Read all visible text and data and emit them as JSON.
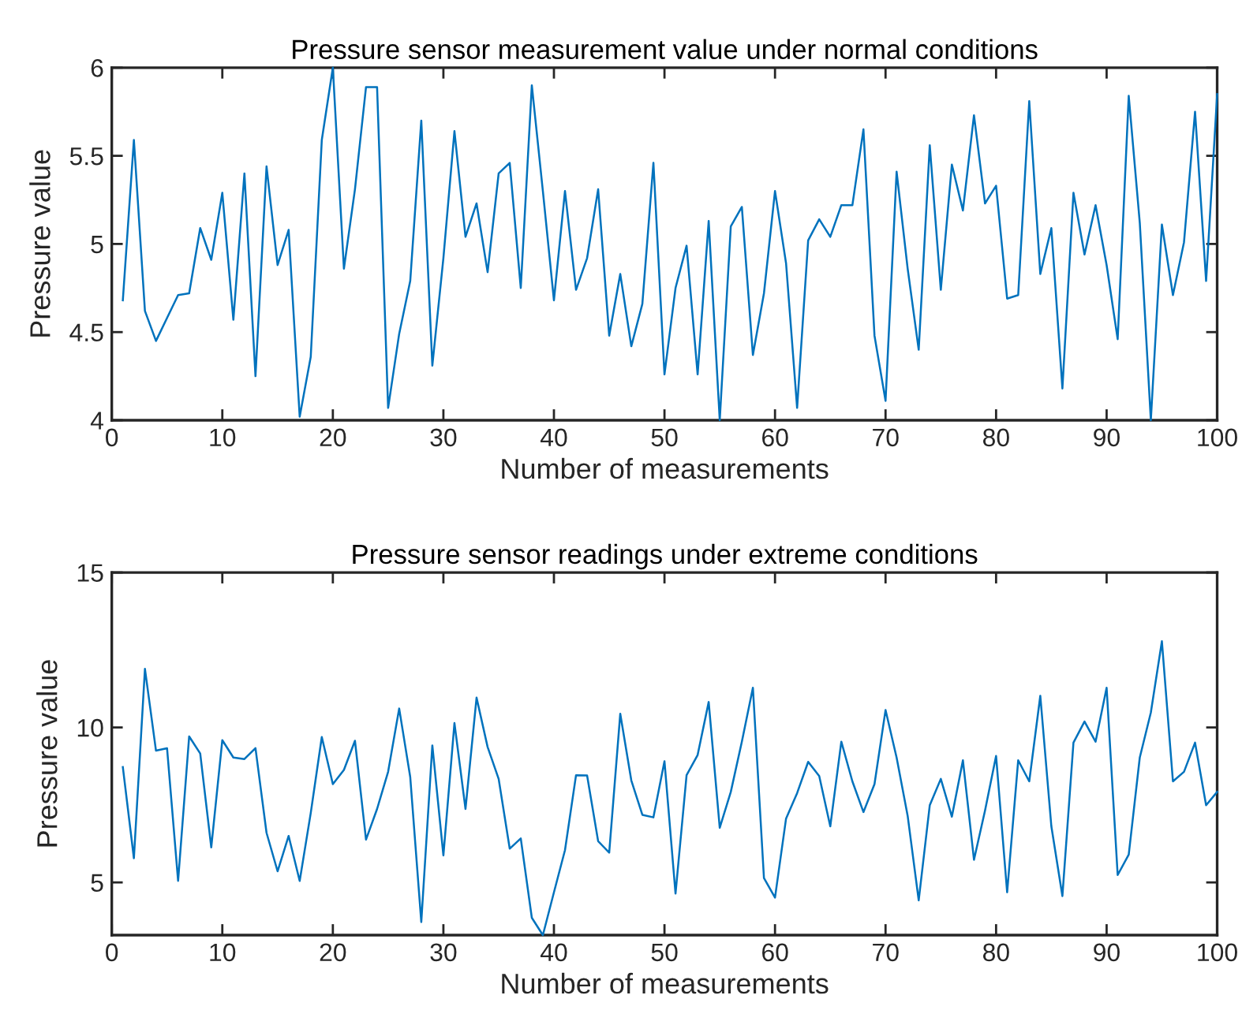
{
  "chart_data": [
    {
      "type": "line",
      "title": "Pressure sensor measurement value under normal conditions",
      "xlabel": "Number of measurements",
      "ylabel": "Pressure value",
      "x": [
        1,
        2,
        3,
        4,
        5,
        6,
        7,
        8,
        9,
        10,
        11,
        12,
        13,
        14,
        15,
        16,
        17,
        18,
        19,
        20,
        21,
        22,
        23,
        24,
        25,
        26,
        27,
        28,
        29,
        30,
        31,
        32,
        33,
        34,
        35,
        36,
        37,
        38,
        39,
        40,
        41,
        42,
        43,
        44,
        45,
        46,
        47,
        48,
        49,
        50,
        51,
        52,
        53,
        54,
        55,
        56,
        57,
        58,
        59,
        60,
        61,
        62,
        63,
        64,
        65,
        66,
        67,
        68,
        69,
        70,
        71,
        72,
        73,
        74,
        75,
        76,
        77,
        78,
        79,
        80,
        81,
        82,
        83,
        84,
        85,
        86,
        87,
        88,
        89,
        90,
        91,
        92,
        93,
        94,
        95,
        96,
        97,
        98,
        99,
        100
      ],
      "series": [
        {
          "color": "#0072bd",
          "values": [
            4.68,
            5.59,
            4.62,
            4.45,
            4.58,
            4.71,
            4.72,
            5.09,
            4.91,
            5.29,
            4.57,
            5.4,
            4.25,
            5.44,
            4.88,
            5.08,
            4.02,
            4.36,
            5.59,
            6.0,
            4.86,
            5.31,
            5.89,
            5.89,
            4.07,
            4.49,
            4.79,
            5.7,
            4.31,
            4.92,
            5.64,
            5.04,
            5.23,
            4.84,
            5.4,
            5.46,
            4.75,
            5.9,
            5.3,
            4.68,
            5.3,
            4.74,
            4.92,
            5.31,
            4.48,
            4.83,
            4.42,
            4.66,
            5.46,
            4.26,
            4.75,
            4.99,
            4.26,
            5.13,
            4.0,
            5.1,
            5.21,
            4.37,
            4.72,
            5.3,
            4.89,
            4.07,
            5.02,
            5.14,
            5.04,
            5.22,
            5.22,
            5.65,
            4.48,
            4.11,
            5.41,
            4.86,
            4.4,
            5.56,
            4.74,
            5.45,
            5.19,
            5.73,
            5.23,
            5.33,
            4.69,
            4.71,
            5.81,
            4.83,
            5.09,
            4.18,
            5.29,
            4.94,
            5.22,
            4.88,
            4.46,
            5.84,
            5.12,
            4.0,
            5.11,
            4.71,
            5.01,
            5.75,
            4.79,
            5.85
          ]
        }
      ],
      "xlim": [
        0,
        100
      ],
      "xticks": [
        0,
        10,
        20,
        30,
        40,
        50,
        60,
        70,
        80,
        90,
        100
      ],
      "ylim": [
        4,
        6
      ],
      "yticks": [
        4,
        4.5,
        5,
        5.5,
        6
      ],
      "grid": false,
      "legend": false,
      "marker": "none",
      "line_style": "solid"
    },
    {
      "type": "line",
      "title": "Pressure sensor readings under extreme conditions",
      "xlabel": "Number of measurements",
      "ylabel": "Pressure value",
      "x": [
        1,
        2,
        3,
        4,
        5,
        6,
        7,
        8,
        9,
        10,
        11,
        12,
        13,
        14,
        15,
        16,
        17,
        18,
        19,
        20,
        21,
        22,
        23,
        24,
        25,
        26,
        27,
        28,
        29,
        30,
        31,
        32,
        33,
        34,
        35,
        36,
        37,
        38,
        39,
        40,
        41,
        42,
        43,
        44,
        45,
        46,
        47,
        48,
        49,
        50,
        51,
        52,
        53,
        54,
        55,
        56,
        57,
        58,
        59,
        60,
        61,
        62,
        63,
        64,
        65,
        66,
        67,
        68,
        69,
        70,
        71,
        72,
        73,
        74,
        75,
        76,
        77,
        78,
        79,
        80,
        81,
        82,
        83,
        84,
        85,
        86,
        87,
        88,
        89,
        90,
        91,
        92,
        93,
        94,
        95,
        96,
        97,
        98,
        99,
        100
      ],
      "series": [
        {
          "color": "#0072bd",
          "values": [
            8.72,
            5.78,
            11.89,
            9.25,
            9.33,
            5.05,
            9.71,
            9.16,
            6.13,
            9.59,
            9.03,
            8.98,
            9.33,
            6.6,
            5.36,
            6.5,
            5.05,
            7.24,
            9.69,
            8.17,
            8.63,
            9.57,
            6.38,
            7.37,
            8.57,
            10.61,
            8.4,
            3.72,
            9.42,
            5.87,
            10.14,
            7.37,
            10.96,
            9.37,
            8.34,
            6.09,
            6.42,
            3.86,
            3.3,
            4.68,
            6.04,
            8.46,
            8.45,
            6.33,
            5.96,
            10.44,
            8.29,
            7.18,
            7.1,
            8.91,
            4.64,
            8.46,
            9.11,
            10.82,
            6.76,
            7.92,
            9.54,
            11.28,
            5.14,
            4.51,
            7.06,
            7.88,
            8.89,
            8.43,
            6.81,
            9.54,
            8.26,
            7.27,
            8.17,
            10.56,
            9.03,
            7.15,
            4.42,
            7.49,
            8.34,
            7.12,
            8.94,
            5.73,
            7.32,
            9.08,
            4.68,
            8.94,
            8.26,
            11.02,
            6.81,
            4.56,
            9.51,
            10.19,
            9.54,
            11.28,
            5.24,
            5.9,
            9.03,
            10.48,
            12.78,
            8.26,
            8.57,
            9.51,
            7.49,
            7.92
          ]
        }
      ],
      "xlim": [
        0,
        100
      ],
      "xticks": [
        0,
        10,
        20,
        30,
        40,
        50,
        60,
        70,
        80,
        90,
        100
      ],
      "ylim": [
        3.3,
        15
      ],
      "yticks": [
        5,
        10,
        15
      ],
      "grid": false,
      "legend": false,
      "marker": "none",
      "line_style": "solid"
    }
  ]
}
